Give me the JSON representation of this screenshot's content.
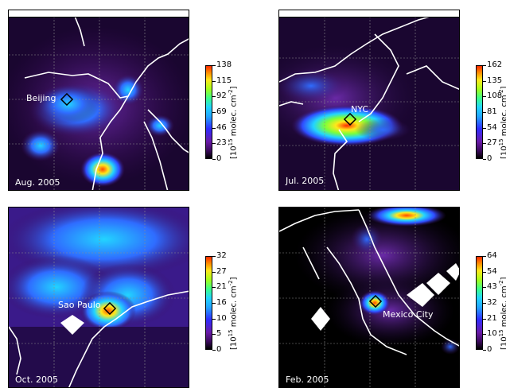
{
  "colors": {
    "background_dark": "#0b0014",
    "low": "#3a0a5a",
    "mid_blue": "#2f6cff",
    "cyan": "#22d4ff",
    "green": "#7cff3a",
    "yellow": "#ffe81a",
    "red": "#ff2a00",
    "coast": "#ffffff",
    "grid": "#8c8c8c"
  },
  "colorbar_units": "[10",
  "colorbar_units_sup": "15",
  "colorbar_units_tail": " molec. cm",
  "colorbar_units_sup2": "-2",
  "colorbar_units_close": "]",
  "chart_data": [
    {
      "type": "heatmap",
      "title": "",
      "date_label": "Aug. 2005",
      "city_label": "Beijing",
      "colorbar_ticks": [
        "0",
        "23",
        "46",
        "69",
        "92",
        "115",
        "138"
      ],
      "colorbar_range": [
        0,
        138
      ],
      "hotspots": [
        {
          "where": "Beijing",
          "value": 80
        },
        {
          "where": "south",
          "value": 115
        },
        {
          "where": "west",
          "value": 70
        }
      ]
    },
    {
      "type": "heatmap",
      "title": "",
      "date_label": "Jul. 2005",
      "city_label": "NYC",
      "colorbar_ticks": [
        "0",
        "27",
        "54",
        "81",
        "108",
        "135",
        "162"
      ],
      "colorbar_range": [
        0,
        162
      ],
      "hotspots": [
        {
          "where": "NYC",
          "value": 135
        }
      ]
    },
    {
      "type": "heatmap",
      "title": "",
      "date_label": "Oct. 2005",
      "city_label": "Sao Paulo",
      "colorbar_ticks": [
        "0",
        "5",
        "10",
        "16",
        "21",
        "27",
        "32"
      ],
      "colorbar_range": [
        0,
        32
      ],
      "hotspots": [
        {
          "where": "Sao Paulo",
          "value": 27
        }
      ]
    },
    {
      "type": "heatmap",
      "title": "",
      "date_label": "Feb. 2005",
      "city_label": "Mexico City",
      "colorbar_ticks": [
        "0",
        "10",
        "21",
        "32",
        "43",
        "54",
        "64"
      ],
      "colorbar_range": [
        0,
        64
      ],
      "hotspots": [
        {
          "where": "Mexico City",
          "value": 43
        },
        {
          "where": "north",
          "value": 54
        }
      ]
    }
  ]
}
